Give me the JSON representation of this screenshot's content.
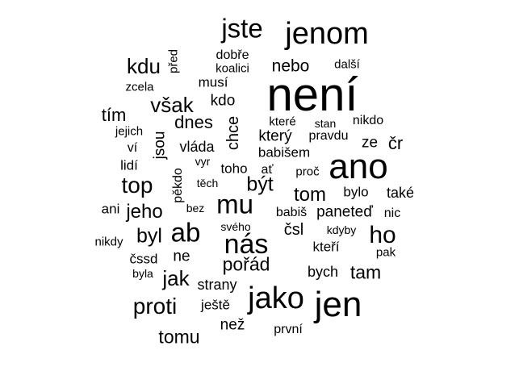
{
  "text_color": "#000000",
  "background": "#ffffff",
  "words": [
    "není",
    "jenom",
    "jste",
    "ano",
    "jen",
    "jako",
    "nás",
    "mu",
    "ab",
    "ho",
    "proti",
    "top",
    "kdu",
    "však",
    "být",
    "tom",
    "jak",
    "byl",
    "jeho",
    "pořád",
    "tam",
    "tomu",
    "dnes",
    "tím",
    "nebo",
    "chce",
    "jsou",
    "pěkdo",
    "před",
    "dobře",
    "koalici",
    "další",
    "zcela",
    "musí",
    "kdo",
    "které",
    "stan",
    "nikdo",
    "jejich",
    "pravdu",
    "který",
    "ze",
    "čr",
    "ví",
    "vláda",
    "babišem",
    "lidí",
    "vyr",
    "toho",
    "ať",
    "proč",
    "těch",
    "bylo",
    "také",
    "ani",
    "bez",
    "babiš",
    "paneteď",
    "nic",
    "svého",
    "čsl",
    "kdyby",
    "nikdy",
    "kteří",
    "pak",
    "čssd",
    "ne",
    "bych",
    "byla",
    "strany",
    "ještě",
    "než",
    "první"
  ]
}
